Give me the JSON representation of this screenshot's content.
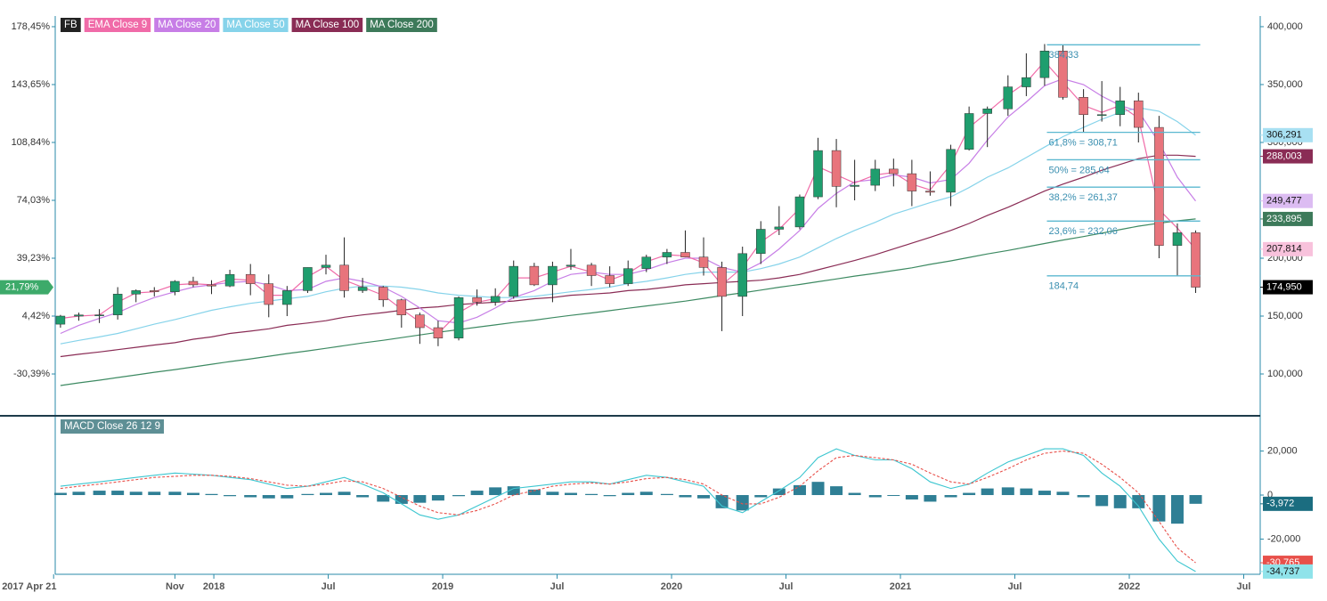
{
  "chart_data": [
    {
      "type": "candlestick",
      "legend": [
        "FB",
        "EMA Close 9",
        "MA Close 20",
        "MA Close 50",
        "MA Close 100",
        "MA Close 200"
      ],
      "legend_colors": [
        "#222222",
        "#f06ba8",
        "#c77ee6",
        "#86d3ea",
        "#8a2c55",
        "#3d7a5a"
      ],
      "up_color": "#1f9e6e",
      "down_color": "#e8747c",
      "xlim": [
        2017.307,
        2022.572
      ],
      "xticks": [
        {
          "value": 2017.3,
          "label": "2017 Apr 21"
        },
        {
          "value": 2017.83,
          "label": "Nov"
        },
        2018,
        {
          "value": 2018.5,
          "label": "Jul"
        },
        2019,
        {
          "value": 2019.5,
          "label": "Jul"
        },
        2020,
        {
          "value": 2020.5,
          "label": "Jul"
        },
        2021,
        {
          "value": 2021.5,
          "label": "Jul"
        },
        2022,
        {
          "value": 2022.5,
          "label": "Jul"
        }
      ],
      "ylim": [
        65.4,
        409.2
      ],
      "yticks": [
        {
          "value": 400,
          "label": "400,000"
        },
        {
          "value": 350,
          "label": "350,000"
        },
        {
          "value": 300,
          "label": "300,000"
        },
        {
          "value": 200,
          "label": "200,000"
        },
        {
          "value": 150,
          "label": "150,000"
        },
        {
          "value": 100,
          "label": "100,000"
        }
      ],
      "y2lim": [
        -54.47,
        184.86
      ],
      "y2ticks": [
        {
          "value": 178.45,
          "label": "178,45%"
        },
        {
          "value": 143.65,
          "label": "143,65%"
        },
        {
          "value": 108.84,
          "label": "108,84%"
        },
        {
          "value": 74.03,
          "label": "74,03%"
        },
        {
          "value": 39.23,
          "label": "39,23%"
        },
        {
          "value": 4.42,
          "label": "4,42%"
        },
        {
          "value": -30.39,
          "label": "-30,39%"
        }
      ],
      "last_close_pct": {
        "value": 21.79,
        "label": "21,79%"
      },
      "x": [
        2017.33,
        2017.41,
        2017.5,
        2017.58,
        2017.66,
        2017.74,
        2017.83,
        2017.91,
        2017.99,
        2018.07,
        2018.16,
        2018.24,
        2018.32,
        2018.41,
        2018.49,
        2018.57,
        2018.65,
        2018.74,
        2018.82,
        2018.9,
        2018.98,
        2019.07,
        2019.15,
        2019.23,
        2019.31,
        2019.4,
        2019.48,
        2019.56,
        2019.65,
        2019.73,
        2019.81,
        2019.89,
        2019.98,
        2020.06,
        2020.14,
        2020.22,
        2020.31,
        2020.39,
        2020.47,
        2020.56,
        2020.64,
        2020.72,
        2020.8,
        2020.89,
        2020.97,
        2021.05,
        2021.13,
        2021.22,
        2021.3,
        2021.38,
        2021.47,
        2021.55,
        2021.63,
        2021.71,
        2021.8,
        2021.88,
        2021.96,
        2022.04,
        2022.13,
        2022.21,
        2022.29
      ],
      "open": [
        143,
        150,
        151,
        151,
        169,
        172,
        171,
        180,
        177,
        176,
        186,
        178,
        160,
        172,
        192,
        194,
        172,
        175,
        164,
        151,
        140,
        131,
        166,
        162,
        167,
        193,
        177,
        193,
        194,
        185,
        178,
        191,
        201,
        205,
        201,
        192,
        167,
        204,
        225,
        227,
        253,
        293,
        262,
        263,
        277,
        273,
        258,
        257,
        294,
        325,
        329,
        348,
        356,
        379,
        339,
        324,
        324,
        336,
        313,
        211,
        222
      ],
      "high": [
        151,
        153,
        156,
        175,
        173,
        175,
        181,
        184,
        181,
        190,
        195,
        186,
        176,
        192,
        203,
        218,
        183,
        176,
        165,
        153,
        146,
        167,
        173,
        174,
        198,
        196,
        197,
        208,
        196,
        193,
        198,
        203,
        208,
        224,
        218,
        197,
        210,
        232,
        245,
        255,
        304,
        303,
        285,
        285,
        286,
        285,
        275,
        298,
        331,
        331,
        358,
        377,
        385,
        384,
        346,
        353,
        348,
        343,
        323,
        230,
        224
      ],
      "low": [
        140,
        146,
        144,
        147,
        162,
        167,
        168,
        175,
        169,
        175,
        168,
        149,
        150,
        170,
        186,
        166,
        170,
        158,
        140,
        126,
        124,
        129,
        159,
        159,
        165,
        176,
        162,
        190,
        176,
        175,
        176,
        188,
        195,
        201,
        185,
        137,
        150,
        195,
        220,
        225,
        251,
        244,
        250,
        258,
        262,
        245,
        254,
        245,
        293,
        296,
        323,
        340,
        349,
        337,
        309,
        318,
        314,
        300,
        200,
        185,
        170
      ],
      "close": [
        150,
        151,
        151,
        169,
        172,
        171,
        180,
        177,
        176,
        186,
        178,
        160,
        172,
        192,
        194,
        172,
        175,
        164,
        151,
        140,
        131,
        166,
        162,
        167,
        193,
        177,
        193,
        194,
        185,
        178,
        191,
        201,
        205,
        201,
        192,
        167,
        204,
        225,
        227,
        253,
        293,
        262,
        263,
        277,
        273,
        258,
        257,
        294,
        325,
        329,
        348,
        356,
        379,
        339,
        324,
        324,
        336,
        313,
        211,
        222,
        174.95
      ],
      "close_label": "174,950",
      "series": [
        {
          "name": "MA Close 200",
          "color": "#3d8a62",
          "label_bg": "#3d7a5a",
          "last_label": "233,895",
          "values": [
            90,
            92.3,
            94.6,
            96.9,
            99.2,
            101.5,
            103.8,
            106.1,
            108.4,
            110.7,
            113,
            115.3,
            117.6,
            119.9,
            122.2,
            124.5,
            126.8,
            129.1,
            131.4,
            133.7,
            136,
            138.3,
            140.4,
            142.4,
            144.5,
            146.5,
            148.6,
            150.6,
            152.7,
            154.7,
            156.8,
            158.8,
            160.9,
            162.9,
            165.3,
            167.7,
            170.1,
            172.5,
            174.9,
            177.3,
            179.7,
            182.1,
            184.5,
            186.9,
            189.3,
            191.7,
            194.7,
            197.7,
            200.7,
            203.7,
            206.7,
            209.7,
            212.7,
            215.7,
            218.7,
            221.7,
            224.7,
            227.7,
            230.2,
            232.3,
            233.895
          ]
        },
        {
          "name": "MA Close 100",
          "color": "#8a2c55",
          "label_bg": "#8a2c55",
          "last_label": "288,003",
          "values": [
            115,
            117,
            119,
            121,
            123,
            125,
            127,
            130,
            132,
            135,
            137,
            139,
            142,
            144,
            146,
            149,
            151,
            153,
            155,
            157,
            158,
            160,
            161,
            162,
            163,
            165,
            166,
            168,
            169,
            170,
            172,
            173,
            175,
            177,
            178,
            179,
            180,
            181,
            183,
            186,
            190,
            194,
            198,
            203,
            208,
            213,
            218,
            224,
            230,
            237,
            244,
            251,
            258,
            264,
            270,
            276,
            281,
            286,
            289,
            289,
            288.003
          ]
        },
        {
          "name": "MA Close 50",
          "color": "#86d3ea",
          "label_bg": "#a8e0f2",
          "last_label": "306,291",
          "values": [
            126,
            129,
            132,
            135,
            139,
            143,
            147,
            151,
            155,
            158,
            161,
            163,
            165,
            167,
            171,
            174,
            176,
            176,
            175,
            173,
            170,
            168,
            167,
            166,
            166,
            167,
            169,
            171,
            173,
            175,
            178,
            180,
            183,
            186,
            188,
            188,
            188,
            191,
            195,
            201,
            209,
            217,
            224,
            231,
            238,
            243,
            248,
            253,
            261,
            270,
            278,
            287,
            296,
            305,
            313,
            320,
            326,
            330,
            327,
            318,
            306.291
          ]
        },
        {
          "name": "MA Close 20",
          "color": "#c77ee6",
          "label_bg": "#dcbcf2",
          "last_label": "249,477",
          "values": [
            135,
            142,
            148,
            153,
            160,
            166,
            171,
            175,
            177,
            179,
            180,
            177,
            172,
            173,
            180,
            183,
            180,
            175,
            167,
            157,
            146,
            144,
            149,
            157,
            166,
            172,
            180,
            186,
            188,
            186,
            186,
            190,
            196,
            200,
            200,
            192,
            188,
            196,
            208,
            224,
            243,
            256,
            266,
            268,
            272,
            270,
            265,
            268,
            282,
            302,
            322,
            335,
            349,
            355,
            350,
            340,
            332,
            327,
            300,
            270,
            249.477
          ]
        },
        {
          "name": "EMA Close 9",
          "color": "#f06ba8",
          "label_bg": "#f8c2dc",
          "last_label": "207,814",
          "values": [
            148,
            150,
            151,
            162,
            170,
            171,
            177,
            178,
            177,
            182,
            181,
            168,
            168,
            184,
            193,
            181,
            175,
            168,
            156,
            145,
            135,
            153,
            162,
            165,
            183,
            183,
            188,
            193,
            188,
            181,
            187,
            197,
            203,
            202,
            196,
            177,
            192,
            214,
            225,
            243,
            279,
            272,
            265,
            272,
            274,
            264,
            259,
            281,
            313,
            326,
            341,
            352,
            370,
            352,
            332,
            326,
            332,
            321,
            242,
            226,
            207.814
          ]
        }
      ],
      "fib_x": [
        2021.64,
        2022.31
      ],
      "fib_levels": [
        {
          "value": 384.33,
          "label": "384,33"
        },
        {
          "value": 308.71,
          "label": "61,8% = 308,71"
        },
        {
          "value": 285.04,
          "label": "50% = 285,04"
        },
        {
          "value": 261.37,
          "label": "38,2% = 261,37"
        },
        {
          "value": 232.06,
          "label": "23,6% = 232,06"
        },
        {
          "value": 184.74,
          "label": "184,74"
        }
      ]
    },
    {
      "type": "macd",
      "title": "MACD Close 26 12 9",
      "ylim": [
        -36,
        34.8
      ],
      "yticks": [
        {
          "value": 20,
          "label": "20,000"
        },
        0,
        {
          "value": -20,
          "label": "-20,000"
        }
      ],
      "histogram": {
        "color": "#2f7f95",
        "label_bg": "#1b6d80",
        "last_label": "-3,972",
        "values": [
          1,
          1.5,
          2,
          2,
          1.5,
          1.5,
          1.5,
          1,
          0.5,
          -0.5,
          -1,
          -1.5,
          -1.5,
          0.5,
          1,
          1.5,
          -1,
          -3,
          -4,
          -3.5,
          -2.5,
          -0.5,
          2,
          3.5,
          4,
          2.5,
          1.5,
          1,
          0.5,
          -0.5,
          1,
          1.5,
          0.5,
          -1,
          -1.5,
          -6,
          -7,
          -1,
          3,
          4.5,
          6,
          4,
          1,
          -1,
          0,
          -2,
          -3,
          -1,
          1,
          3,
          3.5,
          3,
          2,
          1.5,
          -1,
          -5,
          -6,
          -6,
          -12,
          -13,
          -3.972
        ]
      },
      "series": [
        {
          "color": "#3cc6d0",
          "label_bg": "#8fe3ea",
          "last_label": "-34,737",
          "values": [
            4,
            5,
            6,
            7,
            8,
            9,
            10,
            9.5,
            9,
            8,
            7,
            5,
            3,
            4,
            6,
            8,
            5,
            1,
            -4,
            -9,
            -11,
            -9,
            -5,
            -1,
            3,
            4,
            5,
            6,
            6,
            5,
            7,
            9,
            8,
            6,
            4,
            -5,
            -8,
            -3,
            2,
            8,
            17,
            21,
            18,
            16,
            16,
            12,
            6,
            3,
            5,
            10,
            15,
            18,
            21,
            21,
            18,
            10,
            4,
            -5,
            -20,
            -30,
            -34.737
          ]
        },
        {
          "color": "#e8504a",
          "label_bg": "#e8504a",
          "last_label": "-30,765",
          "values": [
            3,
            4,
            5,
            6,
            7,
            8,
            8.5,
            9,
            9,
            8.5,
            7.5,
            6,
            4.5,
            4,
            5,
            6.5,
            6,
            3,
            -1,
            -5,
            -8,
            -9,
            -7,
            -4,
            0,
            2,
            4,
            5,
            5.5,
            5,
            6,
            7.5,
            8,
            7,
            5,
            0,
            -4,
            -4,
            -1,
            4,
            11,
            17,
            18,
            17,
            16,
            14,
            10,
            6,
            5,
            8,
            12,
            16,
            19,
            20,
            19,
            14,
            8,
            1,
            -12,
            -24,
            -30.765
          ]
        }
      ]
    }
  ]
}
